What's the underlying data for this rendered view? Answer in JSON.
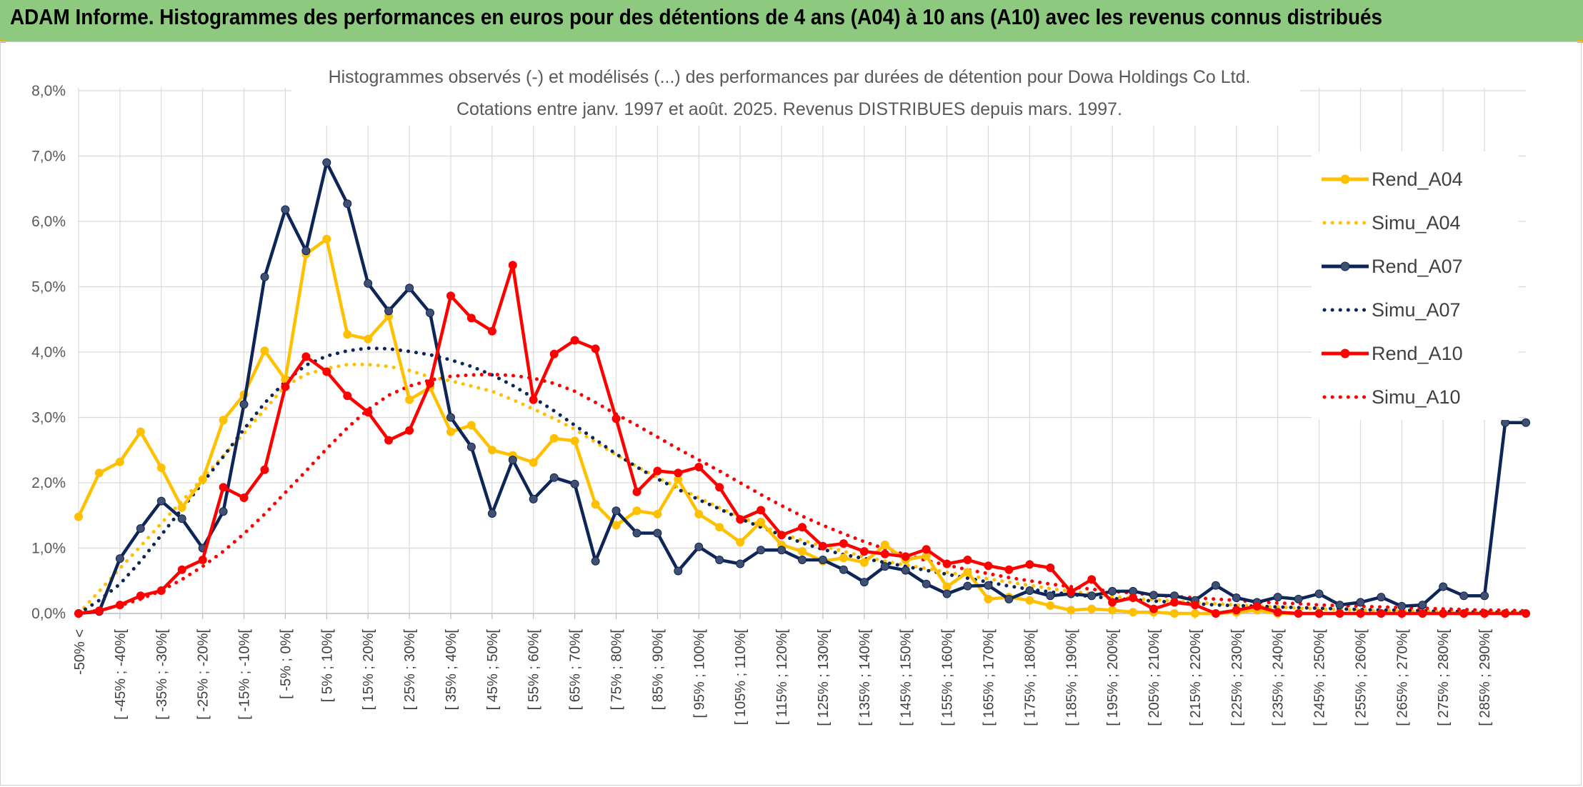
{
  "header": {
    "title": "ADAM Informe. Histogrammes des performances en euros pour des détentions de 4 ans (A04) à 10 ans (A10) avec les revenus connus distribués"
  },
  "chart_data": {
    "type": "line",
    "title": "Histogrammes observés (-) et modélisés (...) des performances par durées de détention pour Dowa Holdings Co Ltd.",
    "subtitle": "Cotations entre janv. 1997 et août. 2025. Revenus DISTRIBUES depuis mars. 1997.",
    "xlabel": "",
    "ylabel": "",
    "ylim": [
      0,
      8
    ],
    "yticks": [
      "0,0%",
      "1,0%",
      "2,0%",
      "3,0%",
      "4,0%",
      "5,0%",
      "6,0%",
      "7,0%",
      "8,0%"
    ],
    "grid": true,
    "legend_position": "right",
    "categories": [
      "-50% <",
      "[ -50% ; -45%[",
      "[ -45% ; -40%[",
      "[ -40% ; -35%[",
      "[ -35% ; -30%[",
      "[ -30% ; -25%[",
      "[ -25% ; -20%[",
      "[ -20% ; -15%[",
      "[ -15% ; -10%[",
      "[ -10% ; -5%[",
      "[ -5% ; 0%[",
      "[ 0% ; 5%[",
      "[ 5% ; 10%[",
      "[ 10% ; 15%[",
      "[ 15% ; 20%[",
      "[ 20% ; 25%[",
      "[ 25% ; 30%[",
      "[ 30% ; 35%[",
      "[ 35% ; 40%[",
      "[ 40% ; 45%[",
      "[ 45% ; 50%[",
      "[ 50% ; 55%[",
      "[ 55% ; 60%[",
      "[ 60% ; 65%[",
      "[ 65% ; 70%[",
      "[ 70% ; 75%[",
      "[ 75% ; 80%[",
      "[ 80% ; 85%[",
      "[ 85% ; 90%[",
      "[ 90% ; 95%[",
      "[ 95% ; 100%[",
      "[ 100% ; 105%[",
      "[ 105% ; 110%[",
      "[ 110% ; 115%[",
      "[ 115% ; 120%[",
      "[ 120% ; 125%[",
      "[ 125% ; 130%[",
      "[ 130% ; 135%[",
      "[ 135% ; 140%[",
      "[ 140% ; 145%[",
      "[ 145% ; 150%[",
      "[ 150% ; 155%[",
      "[ 155% ; 160%[",
      "[ 160% ; 165%[",
      "[ 165% ; 170%[",
      "[ 170% ; 175%[",
      "[ 175% ; 180%[",
      "[ 180% ; 185%[",
      "[ 185% ; 190%[",
      "[ 190% ; 195%[",
      "[ 195% ; 200%[",
      "[ 200% ; 205%[",
      "[ 205% ; 210%[",
      "[ 210% ; 215%[",
      "[ 215% ; 220%[",
      "[ 220% ; 225%[",
      "[ 225% ; 230%[",
      "[ 230% ; 235%[",
      "[ 235% ; 240%[",
      "[ 240% ; 245%[",
      "[ 245% ; 250%[",
      "[ 250% ; 255%[",
      "[ 255% ; 260%[",
      "[ 260% ; 265%[",
      "[ 265% ; 270%[",
      "[ 270% ; 275%[",
      "[ 275% ; 280%[",
      "[ 280% ; 285%[",
      "[ 285% ; 290%[",
      "[ 290% ; 295%[",
      "[ 295% ; 300%["
    ],
    "tick_labels": [
      "-50% <",
      "[ -45% ; -40%[",
      "[ -35% ; -30%[",
      "[ -25% ; -20%[",
      "[ -15% ; -10%[",
      "[ -5% ; 0%[",
      "[ 5% ; 10%[",
      "[ 15% ; 20%[",
      "[ 25% ; 30%[",
      "[ 35% ; 40%[",
      "[ 45% ; 50%[",
      "[ 55% ; 60%[",
      "[ 65% ; 70%[",
      "[ 75% ; 80%[",
      "[ 85% ; 90%[",
      "[ 95% ; 100%[",
      "[ 105% ; 110%[",
      "[ 115% ; 120%[",
      "[ 125% ; 130%[",
      "[ 135% ; 140%[",
      "[ 145% ; 150%[",
      "[ 155% ; 160%[",
      "[ 165% ; 170%[",
      "[ 175% ; 180%[",
      "[ 185% ; 190%[",
      "[ 195% ; 200%[",
      "[ 205% ; 210%[",
      "[ 215% ; 220%[",
      "[ 225% ; 230%[",
      "[ 235% ; 240%[",
      "[ 245% ; 250%[",
      "[ 255% ; 260%[",
      "[ 265% ; 270%[",
      "[ 275% ; 280%[",
      "[ 285% ; 290%["
    ],
    "series": [
      {
        "name": "Rend_A04",
        "style": "solid",
        "markers": true,
        "color": "#ffc000",
        "values": [
          1.48,
          2.15,
          2.32,
          2.78,
          2.23,
          1.62,
          2.05,
          2.96,
          3.35,
          4.02,
          3.58,
          5.5,
          5.73,
          4.27,
          4.2,
          4.55,
          3.27,
          3.46,
          2.78,
          2.88,
          2.5,
          2.42,
          2.31,
          2.68,
          2.64,
          1.67,
          1.35,
          1.57,
          1.52,
          2.05,
          1.52,
          1.32,
          1.09,
          1.4,
          1.05,
          0.95,
          0.8,
          0.85,
          0.78,
          1.05,
          0.82,
          0.88,
          0.41,
          0.63,
          0.22,
          0.25,
          0.2,
          0.12,
          0.05,
          0.07,
          0.05,
          0.02,
          0.02,
          0.0,
          0.0,
          0.0,
          0.02,
          0.05,
          0.0,
          0.0,
          0.0,
          0.0,
          0.0,
          0.0,
          0.0,
          0.0,
          0.0,
          0.0,
          0.0,
          0.0,
          0.0
        ]
      },
      {
        "name": "Simu_A04",
        "style": "dotted",
        "markers": false,
        "color": "#ffc000",
        "values": [
          0.0,
          0.34,
          0.69,
          1.03,
          1.38,
          1.72,
          2.07,
          2.41,
          2.76,
          3.12,
          3.48,
          3.66,
          3.75,
          3.81,
          3.81,
          3.78,
          3.72,
          3.62,
          3.56,
          3.48,
          3.4,
          3.27,
          3.13,
          2.98,
          2.82,
          2.62,
          2.43,
          2.25,
          2.08,
          1.93,
          1.77,
          1.62,
          1.48,
          1.35,
          1.22,
          1.12,
          1.03,
          0.95,
          0.87,
          0.8,
          0.74,
          0.69,
          0.63,
          0.58,
          0.53,
          0.48,
          0.43,
          0.38,
          0.34,
          0.3,
          0.26,
          0.23,
          0.21,
          0.19,
          0.17,
          0.15,
          0.13,
          0.11,
          0.1,
          0.08,
          0.07,
          0.06,
          0.05,
          0.04,
          0.04,
          0.03,
          0.03,
          0.02,
          0.02,
          0.02,
          0.02
        ]
      },
      {
        "name": "Rend_A07",
        "style": "solid",
        "markers": true,
        "color": "#0d2557",
        "values": [
          0.0,
          0.03,
          0.84,
          1.3,
          1.72,
          1.45,
          1.0,
          1.56,
          3.2,
          5.15,
          6.18,
          5.55,
          6.9,
          6.27,
          5.05,
          4.63,
          4.98,
          4.6,
          3.0,
          2.55,
          1.53,
          2.35,
          1.75,
          2.08,
          1.98,
          0.8,
          1.57,
          1.23,
          1.23,
          0.65,
          1.02,
          0.82,
          0.76,
          0.97,
          0.97,
          0.82,
          0.82,
          0.67,
          0.48,
          0.72,
          0.66,
          0.45,
          0.3,
          0.42,
          0.43,
          0.22,
          0.35,
          0.27,
          0.3,
          0.27,
          0.34,
          0.34,
          0.28,
          0.27,
          0.2,
          0.43,
          0.24,
          0.17,
          0.25,
          0.22,
          0.3,
          0.13,
          0.17,
          0.25,
          0.11,
          0.13,
          0.41,
          0.27,
          0.27,
          2.92,
          2.92
        ]
      },
      {
        "name": "Simu_A07",
        "style": "dotted",
        "markers": false,
        "color": "#0d2557",
        "values": [
          0.0,
          0.2,
          0.45,
          0.8,
          1.2,
          1.6,
          2.0,
          2.4,
          2.82,
          3.22,
          3.55,
          3.8,
          3.94,
          4.02,
          4.06,
          4.05,
          4.01,
          3.96,
          3.88,
          3.78,
          3.65,
          3.49,
          3.3,
          3.1,
          2.88,
          2.66,
          2.44,
          2.24,
          2.06,
          1.9,
          1.74,
          1.6,
          1.45,
          1.32,
          1.2,
          1.08,
          0.98,
          0.9,
          0.84,
          0.78,
          0.72,
          0.66,
          0.6,
          0.54,
          0.48,
          0.42,
          0.37,
          0.33,
          0.29,
          0.26,
          0.23,
          0.21,
          0.19,
          0.17,
          0.15,
          0.13,
          0.12,
          0.11,
          0.1,
          0.09,
          0.08,
          0.07,
          0.06,
          0.05,
          0.05,
          0.04,
          0.03,
          0.03,
          0.02,
          0.02,
          0.02
        ]
      },
      {
        "name": "Rend_A10",
        "style": "solid",
        "markers": true,
        "color": "#ff0000",
        "values": [
          0.0,
          0.04,
          0.13,
          0.27,
          0.35,
          0.67,
          0.82,
          1.93,
          1.77,
          2.2,
          3.47,
          3.93,
          3.7,
          3.33,
          3.08,
          2.65,
          2.8,
          3.52,
          4.86,
          4.52,
          4.32,
          5.33,
          3.27,
          3.97,
          4.18,
          4.05,
          2.98,
          1.86,
          2.18,
          2.15,
          2.24,
          1.93,
          1.44,
          1.58,
          1.2,
          1.32,
          1.03,
          1.07,
          0.95,
          0.91,
          0.87,
          0.98,
          0.76,
          0.82,
          0.73,
          0.67,
          0.75,
          0.7,
          0.33,
          0.52,
          0.17,
          0.24,
          0.07,
          0.17,
          0.13,
          0.0,
          0.05,
          0.11,
          0.02,
          0.0,
          0.0,
          0.0,
          0.0,
          0.0,
          0.0,
          0.0,
          0.0,
          0.0,
          0.0,
          0.0,
          0.0
        ]
      },
      {
        "name": "Simu_A10",
        "style": "dotted",
        "markers": false,
        "color": "#ff0000",
        "values": [
          0.0,
          0.05,
          0.12,
          0.22,
          0.35,
          0.52,
          0.72,
          0.95,
          1.22,
          1.52,
          1.85,
          2.18,
          2.52,
          2.84,
          3.12,
          3.34,
          3.48,
          3.57,
          3.63,
          3.65,
          3.66,
          3.64,
          3.6,
          3.52,
          3.4,
          3.23,
          3.05,
          2.88,
          2.7,
          2.52,
          2.35,
          2.18,
          2.0,
          1.82,
          1.65,
          1.49,
          1.35,
          1.22,
          1.1,
          0.99,
          0.9,
          0.81,
          0.74,
          0.67,
          0.61,
          0.55,
          0.5,
          0.45,
          0.41,
          0.37,
          0.34,
          0.31,
          0.28,
          0.26,
          0.24,
          0.22,
          0.2,
          0.18,
          0.16,
          0.15,
          0.13,
          0.12,
          0.11,
          0.1,
          0.09,
          0.08,
          0.07,
          0.06,
          0.05,
          0.05,
          0.04
        ]
      }
    ]
  }
}
